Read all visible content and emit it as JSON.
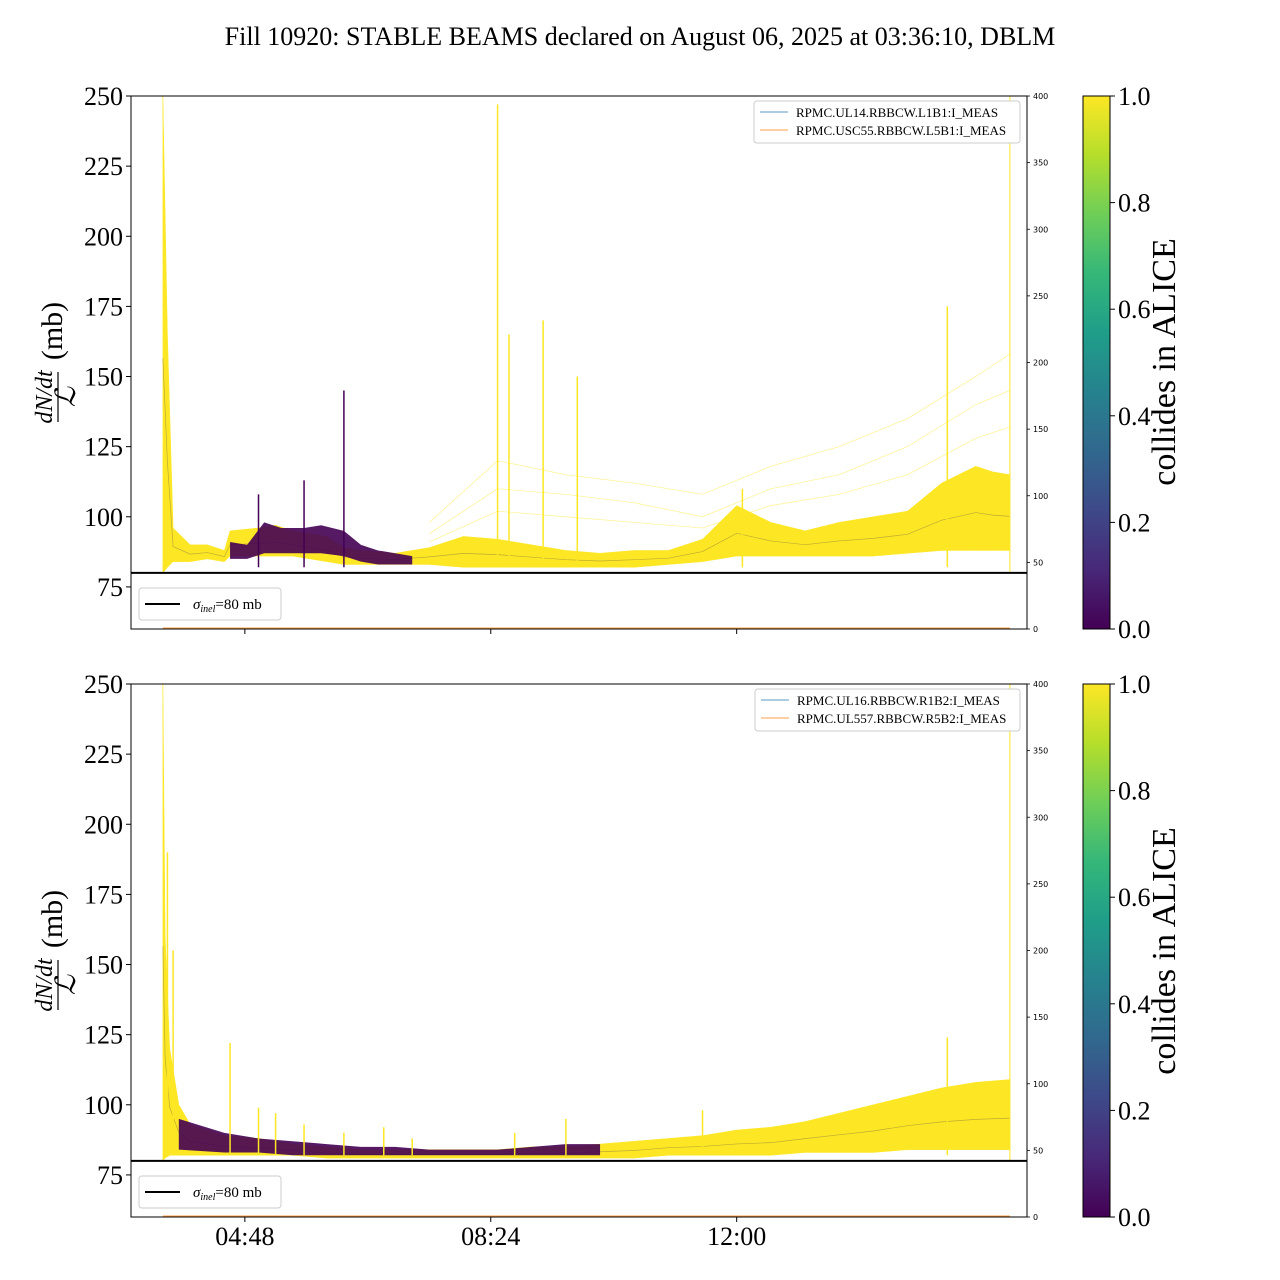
{
  "figure_title": "Fill 10920: STABLE BEAMS declared on August 06, 2025 at 03:36:10, DBLM",
  "colors": {
    "viridis": [
      "#440154",
      "#482878",
      "#3e4989",
      "#31688e",
      "#26828e",
      "#1f9e89",
      "#35b779",
      "#6ece58",
      "#b5de2b",
      "#fde725"
    ],
    "rp_series_1": "#1f77b4",
    "rp_series_2": "#ff7f0e",
    "reference_line": "#000000"
  },
  "chart_data": [
    {
      "type": "line",
      "panel": "top",
      "ylabel": {
        "num": "dN/dt",
        "den": "ℒ",
        "unit": "(mb)"
      },
      "ylim": [
        60,
        250
      ],
      "yticks": [
        "75",
        "100",
        "125",
        "150",
        "175",
        "200",
        "225",
        "250"
      ],
      "xticks": [
        "04:48",
        "08:24",
        "12:00"
      ],
      "xticklabels_visible": false,
      "x_range": [
        "03:08",
        "16:15"
      ],
      "right_axis": {
        "ylim": [
          0,
          400
        ],
        "ticks": [
          "0",
          "50",
          "100",
          "150",
          "200",
          "250",
          "300",
          "350",
          "400"
        ]
      },
      "legend_rp": [
        "RPMC.UL14.RBBCW.L1B1:I_MEAS",
        "RPMC.USC55.RBBCW.L5B1:I_MEAS"
      ],
      "legend_ref": {
        "symbol": "σ",
        "subscript": "inel",
        "text": "=80 mb"
      },
      "reference_line_y": 80,
      "colorbar": {
        "label": "collides in ALICE",
        "ticks": [
          "0.0",
          "0.2",
          "0.4",
          "0.6",
          "0.8",
          "1.0"
        ],
        "range": [
          0,
          1
        ]
      },
      "envelope": {
        "x": [
          "03:36",
          "03:40",
          "03:45",
          "04:00",
          "04:15",
          "04:30",
          "04:35",
          "05:00",
          "05:15",
          "05:30",
          "06:00",
          "06:15",
          "06:30",
          "07:00",
          "07:30",
          "08:00",
          "08:30",
          "09:00",
          "09:30",
          "10:00",
          "10:30",
          "11:00",
          "11:30",
          "11:45",
          "12:00",
          "12:30",
          "13:00",
          "13:30",
          "14:00",
          "14:30",
          "15:00",
          "15:30",
          "15:45",
          "16:00"
        ],
        "upper": [
          250,
          165,
          96,
          90,
          90,
          88,
          95,
          96,
          97,
          95,
          93,
          89,
          88,
          87,
          89,
          93,
          92,
          90,
          88,
          87,
          88,
          88,
          92,
          98,
          104,
          98,
          95,
          98,
          100,
          102,
          112,
          118,
          116,
          115
        ],
        "lower": [
          80,
          82,
          84,
          84,
          85,
          84,
          86,
          86,
          86,
          86,
          84,
          83,
          83,
          83,
          83,
          82,
          82,
          82,
          82,
          82,
          82,
          83,
          84,
          85,
          86,
          86,
          86,
          86,
          86,
          87,
          88,
          88,
          88,
          88
        ]
      },
      "purple_segments": [
        {
          "x": [
            "04:35",
            "04:50",
            "05:05",
            "05:20",
            "05:40",
            "05:55",
            "06:15",
            "06:30",
            "06:45",
            "07:00",
            "07:15"
          ],
          "upper": [
            91,
            90,
            98,
            96,
            96,
            97,
            95,
            90,
            88,
            87,
            86
          ],
          "lower": [
            85,
            85,
            87,
            87,
            87,
            87,
            86,
            84,
            83,
            83,
            83
          ]
        }
      ],
      "spikes": [
        {
          "x": "05:00",
          "y": 108
        },
        {
          "x": "05:40",
          "y": 113
        },
        {
          "x": "06:15",
          "y": 145
        },
        {
          "x": "08:30",
          "y": 247
        },
        {
          "x": "08:40",
          "y": 165
        },
        {
          "x": "09:10",
          "y": 170
        },
        {
          "x": "09:40",
          "y": 150
        },
        {
          "x": "12:05",
          "y": 110
        },
        {
          "x": "15:05",
          "y": 175
        }
      ],
      "faint_lines": [
        {
          "x": [
            "07:30",
            "08:30",
            "09:30",
            "10:30",
            "11:30",
            "12:30",
            "13:30",
            "14:30",
            "15:30",
            "16:00"
          ],
          "y": [
            98,
            120,
            115,
            112,
            108,
            118,
            125,
            135,
            150,
            158
          ]
        },
        {
          "x": [
            "07:30",
            "08:30",
            "09:30",
            "10:30",
            "11:30",
            "12:30",
            "13:30",
            "14:30",
            "15:30",
            "16:00"
          ],
          "y": [
            94,
            110,
            108,
            105,
            100,
            110,
            115,
            125,
            140,
            145
          ]
        },
        {
          "x": [
            "07:30",
            "08:30",
            "09:30",
            "10:30",
            "11:30",
            "12:30",
            "13:30",
            "14:30",
            "15:30",
            "16:00"
          ],
          "y": [
            91,
            102,
            100,
            98,
            96,
            104,
            108,
            115,
            128,
            132
          ]
        }
      ],
      "right_edge_line_x": "16:00"
    },
    {
      "type": "line",
      "panel": "bottom",
      "ylabel": {
        "num": "dN/dt",
        "den": "ℒ",
        "unit": "(mb)"
      },
      "ylim": [
        60,
        250
      ],
      "yticks": [
        "75",
        "100",
        "125",
        "150",
        "175",
        "200",
        "225",
        "250"
      ],
      "xticks": [
        "04:48",
        "08:24",
        "12:00"
      ],
      "xticklabels_visible": true,
      "x_range": [
        "03:08",
        "16:15"
      ],
      "right_axis": {
        "ylim": [
          0,
          400
        ],
        "ticks": [
          "0",
          "50",
          "100",
          "150",
          "200",
          "250",
          "300",
          "350",
          "400"
        ]
      },
      "legend_rp": [
        "RPMC.UL16.RBBCW.R1B2:I_MEAS",
        "RPMC.UL557.RBBCW.R5B2:I_MEAS"
      ],
      "legend_ref": {
        "symbol": "σ",
        "subscript": "inel",
        "text": "=80 mb"
      },
      "reference_line_y": 80,
      "colorbar": {
        "label": "collides in ALICE",
        "ticks": [
          "0.0",
          "0.2",
          "0.4",
          "0.6",
          "0.8",
          "1.0"
        ],
        "range": [
          0,
          1
        ]
      },
      "envelope": {
        "x": [
          "03:36",
          "03:38",
          "03:42",
          "03:50",
          "04:00",
          "04:15",
          "04:30",
          "05:00",
          "05:30",
          "06:00",
          "06:30",
          "07:00",
          "07:30",
          "08:00",
          "08:30",
          "09:00",
          "09:30",
          "10:00",
          "10:30",
          "11:00",
          "11:30",
          "12:00",
          "12:30",
          "13:00",
          "13:30",
          "14:00",
          "14:30",
          "15:00",
          "15:30",
          "16:00"
        ],
        "upper": [
          250,
          160,
          120,
          100,
          93,
          91,
          89,
          88,
          86,
          85,
          84,
          84,
          84,
          84,
          84,
          85,
          85,
          86,
          87,
          88,
          89,
          91,
          92,
          94,
          97,
          100,
          103,
          106,
          108,
          109
        ],
        "lower": [
          80,
          81,
          82,
          82,
          82,
          82,
          82,
          82,
          82,
          81,
          81,
          81,
          81,
          81,
          81,
          81,
          81,
          81,
          81,
          82,
          82,
          82,
          82,
          83,
          83,
          83,
          84,
          84,
          84,
          84
        ]
      },
      "purple_segments": [
        {
          "x": [
            "03:50",
            "04:30",
            "05:00",
            "05:30",
            "06:00",
            "06:30",
            "07:00",
            "07:30",
            "08:00",
            "08:30",
            "09:00",
            "09:30",
            "10:00"
          ],
          "upper": [
            95,
            90,
            88,
            87,
            86,
            85,
            85,
            84,
            84,
            84,
            85,
            86,
            86
          ],
          "lower": [
            84,
            83,
            83,
            82,
            82,
            82,
            82,
            82,
            82,
            82,
            82,
            82,
            82
          ]
        }
      ],
      "spikes": [
        {
          "x": "03:40",
          "y": 190
        },
        {
          "x": "03:45",
          "y": 155
        },
        {
          "x": "04:35",
          "y": 122
        },
        {
          "x": "05:00",
          "y": 99
        },
        {
          "x": "05:15",
          "y": 97
        },
        {
          "x": "05:40",
          "y": 93
        },
        {
          "x": "06:15",
          "y": 90
        },
        {
          "x": "06:50",
          "y": 92
        },
        {
          "x": "07:15",
          "y": 88
        },
        {
          "x": "08:45",
          "y": 90
        },
        {
          "x": "09:30",
          "y": 95
        },
        {
          "x": "11:30",
          "y": 98
        },
        {
          "x": "15:05",
          "y": 124
        }
      ],
      "faint_lines": [],
      "right_edge_line_x": "16:00"
    }
  ]
}
